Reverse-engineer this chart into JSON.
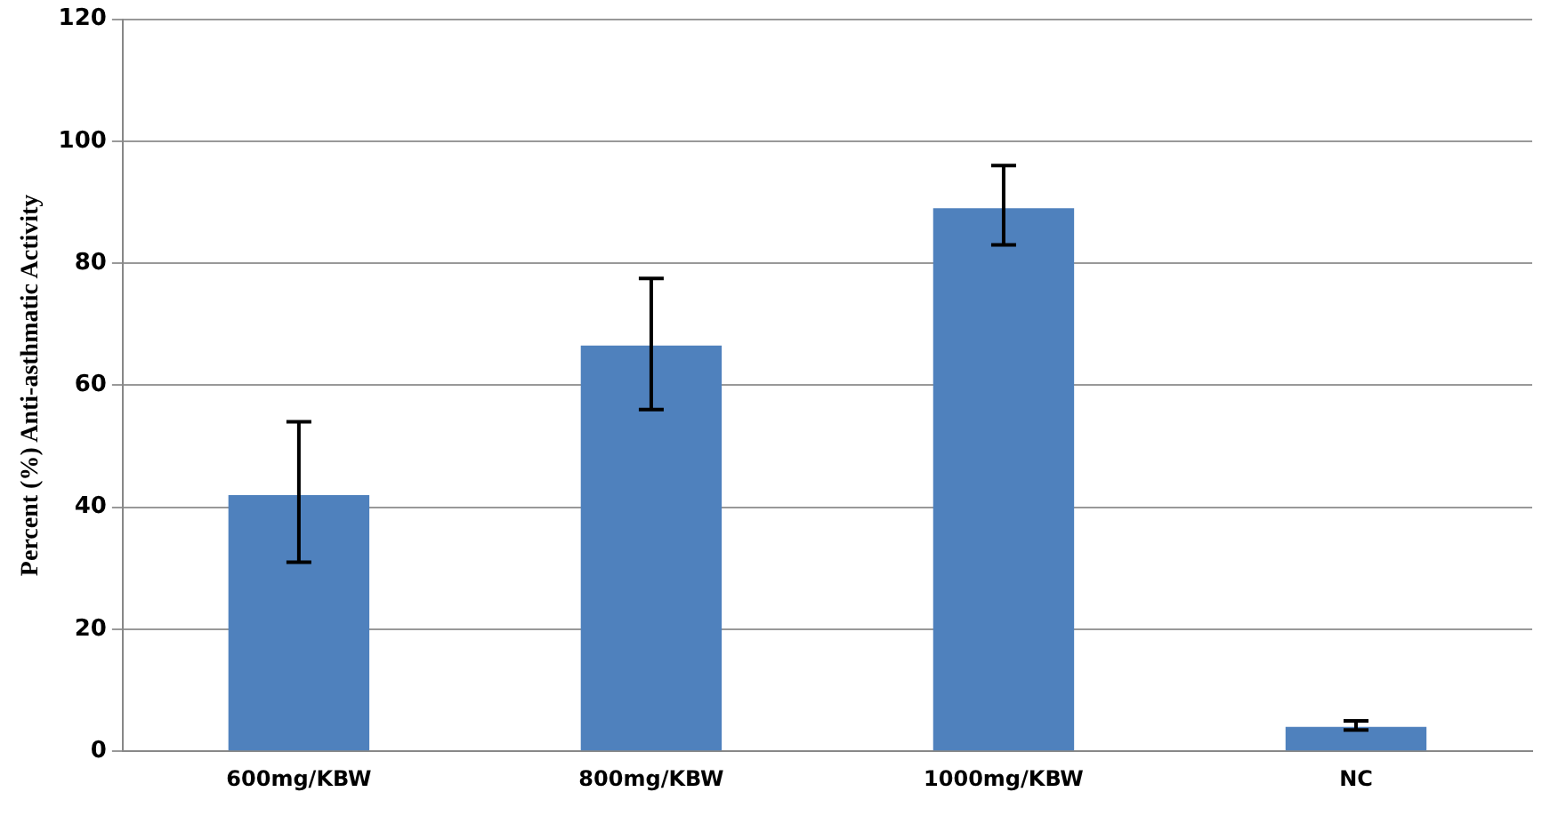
{
  "chart_data": {
    "type": "bar",
    "ylabel": "Percent (%) Anti-asthmatic Activity",
    "categories": [
      "600mg/KBW",
      "800mg/KBW",
      "1000mg/KBW",
      "NC"
    ],
    "values": [
      42,
      66.5,
      89,
      4
    ],
    "errors": [
      [
        31,
        54
      ],
      [
        56,
        77.5
      ],
      [
        83,
        96
      ],
      [
        3.5,
        5
      ]
    ],
    "color": "#4f81bd",
    "ylim": [
      0,
      120
    ],
    "yticks": [
      0,
      20,
      40,
      60,
      80,
      100,
      120
    ],
    "grid": "y",
    "legend": false
  }
}
